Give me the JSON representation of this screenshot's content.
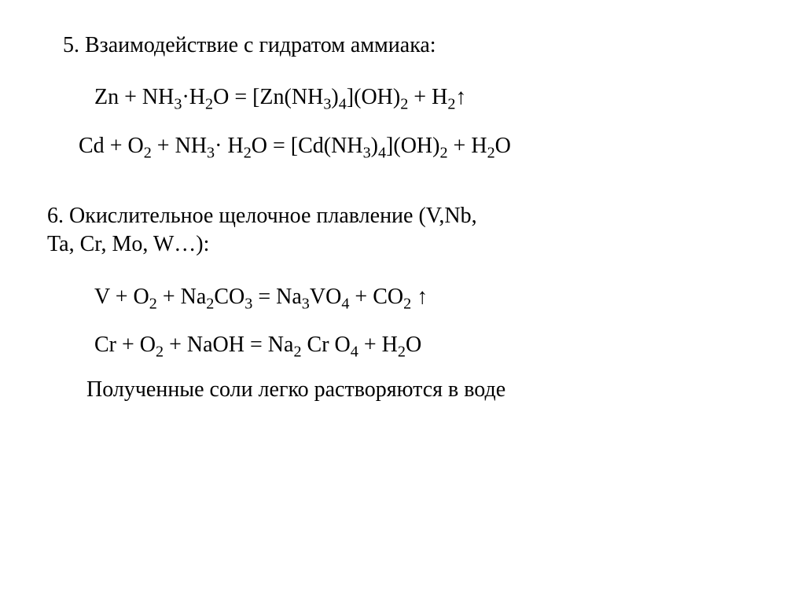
{
  "page": {
    "background_color": "#ffffff",
    "text_color": "#000000",
    "font_family": "Times New Roman",
    "base_fontsize_pt": 21
  },
  "section5": {
    "heading_prefix": "5. ",
    "heading_text": "Взаимодействие с гидратом аммиака:",
    "eq1": {
      "lhs_species1": "Zn",
      "plus1": " + ",
      "lhs_species2_a": "NH",
      "lhs_species2_a_sub": "3",
      "lhs_dot": "·",
      "lhs_species2_b": "H",
      "lhs_species2_b_sub": "2",
      "lhs_species2_c": "O",
      "equals": " = ",
      "rhs_open": "[Zn(NH",
      "rhs_nh3_sub": "3",
      "rhs_close_paren": ")",
      "rhs_4_sub": "4",
      "rhs_close_bracket": "](OH)",
      "rhs_oh2_sub": "2",
      "plus2": " + ",
      "rhs_h": "H",
      "rhs_h2_sub": "2",
      "arrow_up": "↑"
    },
    "eq2": {
      "lhs_a": "Cd",
      "plus1": " + ",
      "lhs_b": "O",
      "lhs_b_sub": "2",
      "plus2": " + ",
      "lhs_c": "NH",
      "lhs_c_sub": "3",
      "lhs_dot": "· ",
      "lhs_d": "H",
      "lhs_d_sub": "2",
      "lhs_e": "O",
      "equals": " = ",
      "rhs_open": "[Cd(NH",
      "rhs_nh3_sub": "3",
      "rhs_close_paren": ")",
      "rhs_4_sub": "4",
      "rhs_close_bracket": "](OH)",
      "rhs_oh2_sub": "2",
      "plus3": " + ",
      "rhs_h2o_a": "H",
      "rhs_h2o_a_sub": "2",
      "rhs_h2o_b": "O"
    }
  },
  "section6": {
    "heading_prefix": "6. ",
    "heading_line1": "Окислительное щелочное плавление (V,Nb,",
    "heading_line2": "Ta, Cr, Mo, W…):",
    "eq1": {
      "lhs_a": "V",
      "plus1": " + ",
      "lhs_b": "O",
      "lhs_b_sub": "2",
      "plus2": " + ",
      "lhs_c": "Na",
      "lhs_c_sub": "2",
      "lhs_d": "CO",
      "lhs_d_sub": "3",
      "equals": " = ",
      "rhs_a": "Na",
      "rhs_a_sub": "3",
      "rhs_b": "VO",
      "rhs_b_sub": "4",
      "plus3": " + ",
      "rhs_c": "CO",
      "rhs_c_sub": "2",
      "space": " ",
      "arrow_up": "↑"
    },
    "eq2": {
      "lhs_a": "Cr",
      "plus1": " +  ",
      "lhs_b": "O",
      "lhs_b_sub": "2",
      "plus2": "  +  ",
      "lhs_c": "NaOH",
      "equals": " = ",
      "rhs_a": "Na",
      "rhs_a_sub": "2",
      "rhs_space1": " ",
      "rhs_b": "Cr",
      "rhs_space2": " ",
      "rhs_c": "O",
      "rhs_c_sub": "4",
      "plus3": " +  ",
      "rhs_d": "H",
      "rhs_d_sub": "2",
      "rhs_e": "O"
    },
    "note": "Полученные соли легко растворяются в воде"
  }
}
